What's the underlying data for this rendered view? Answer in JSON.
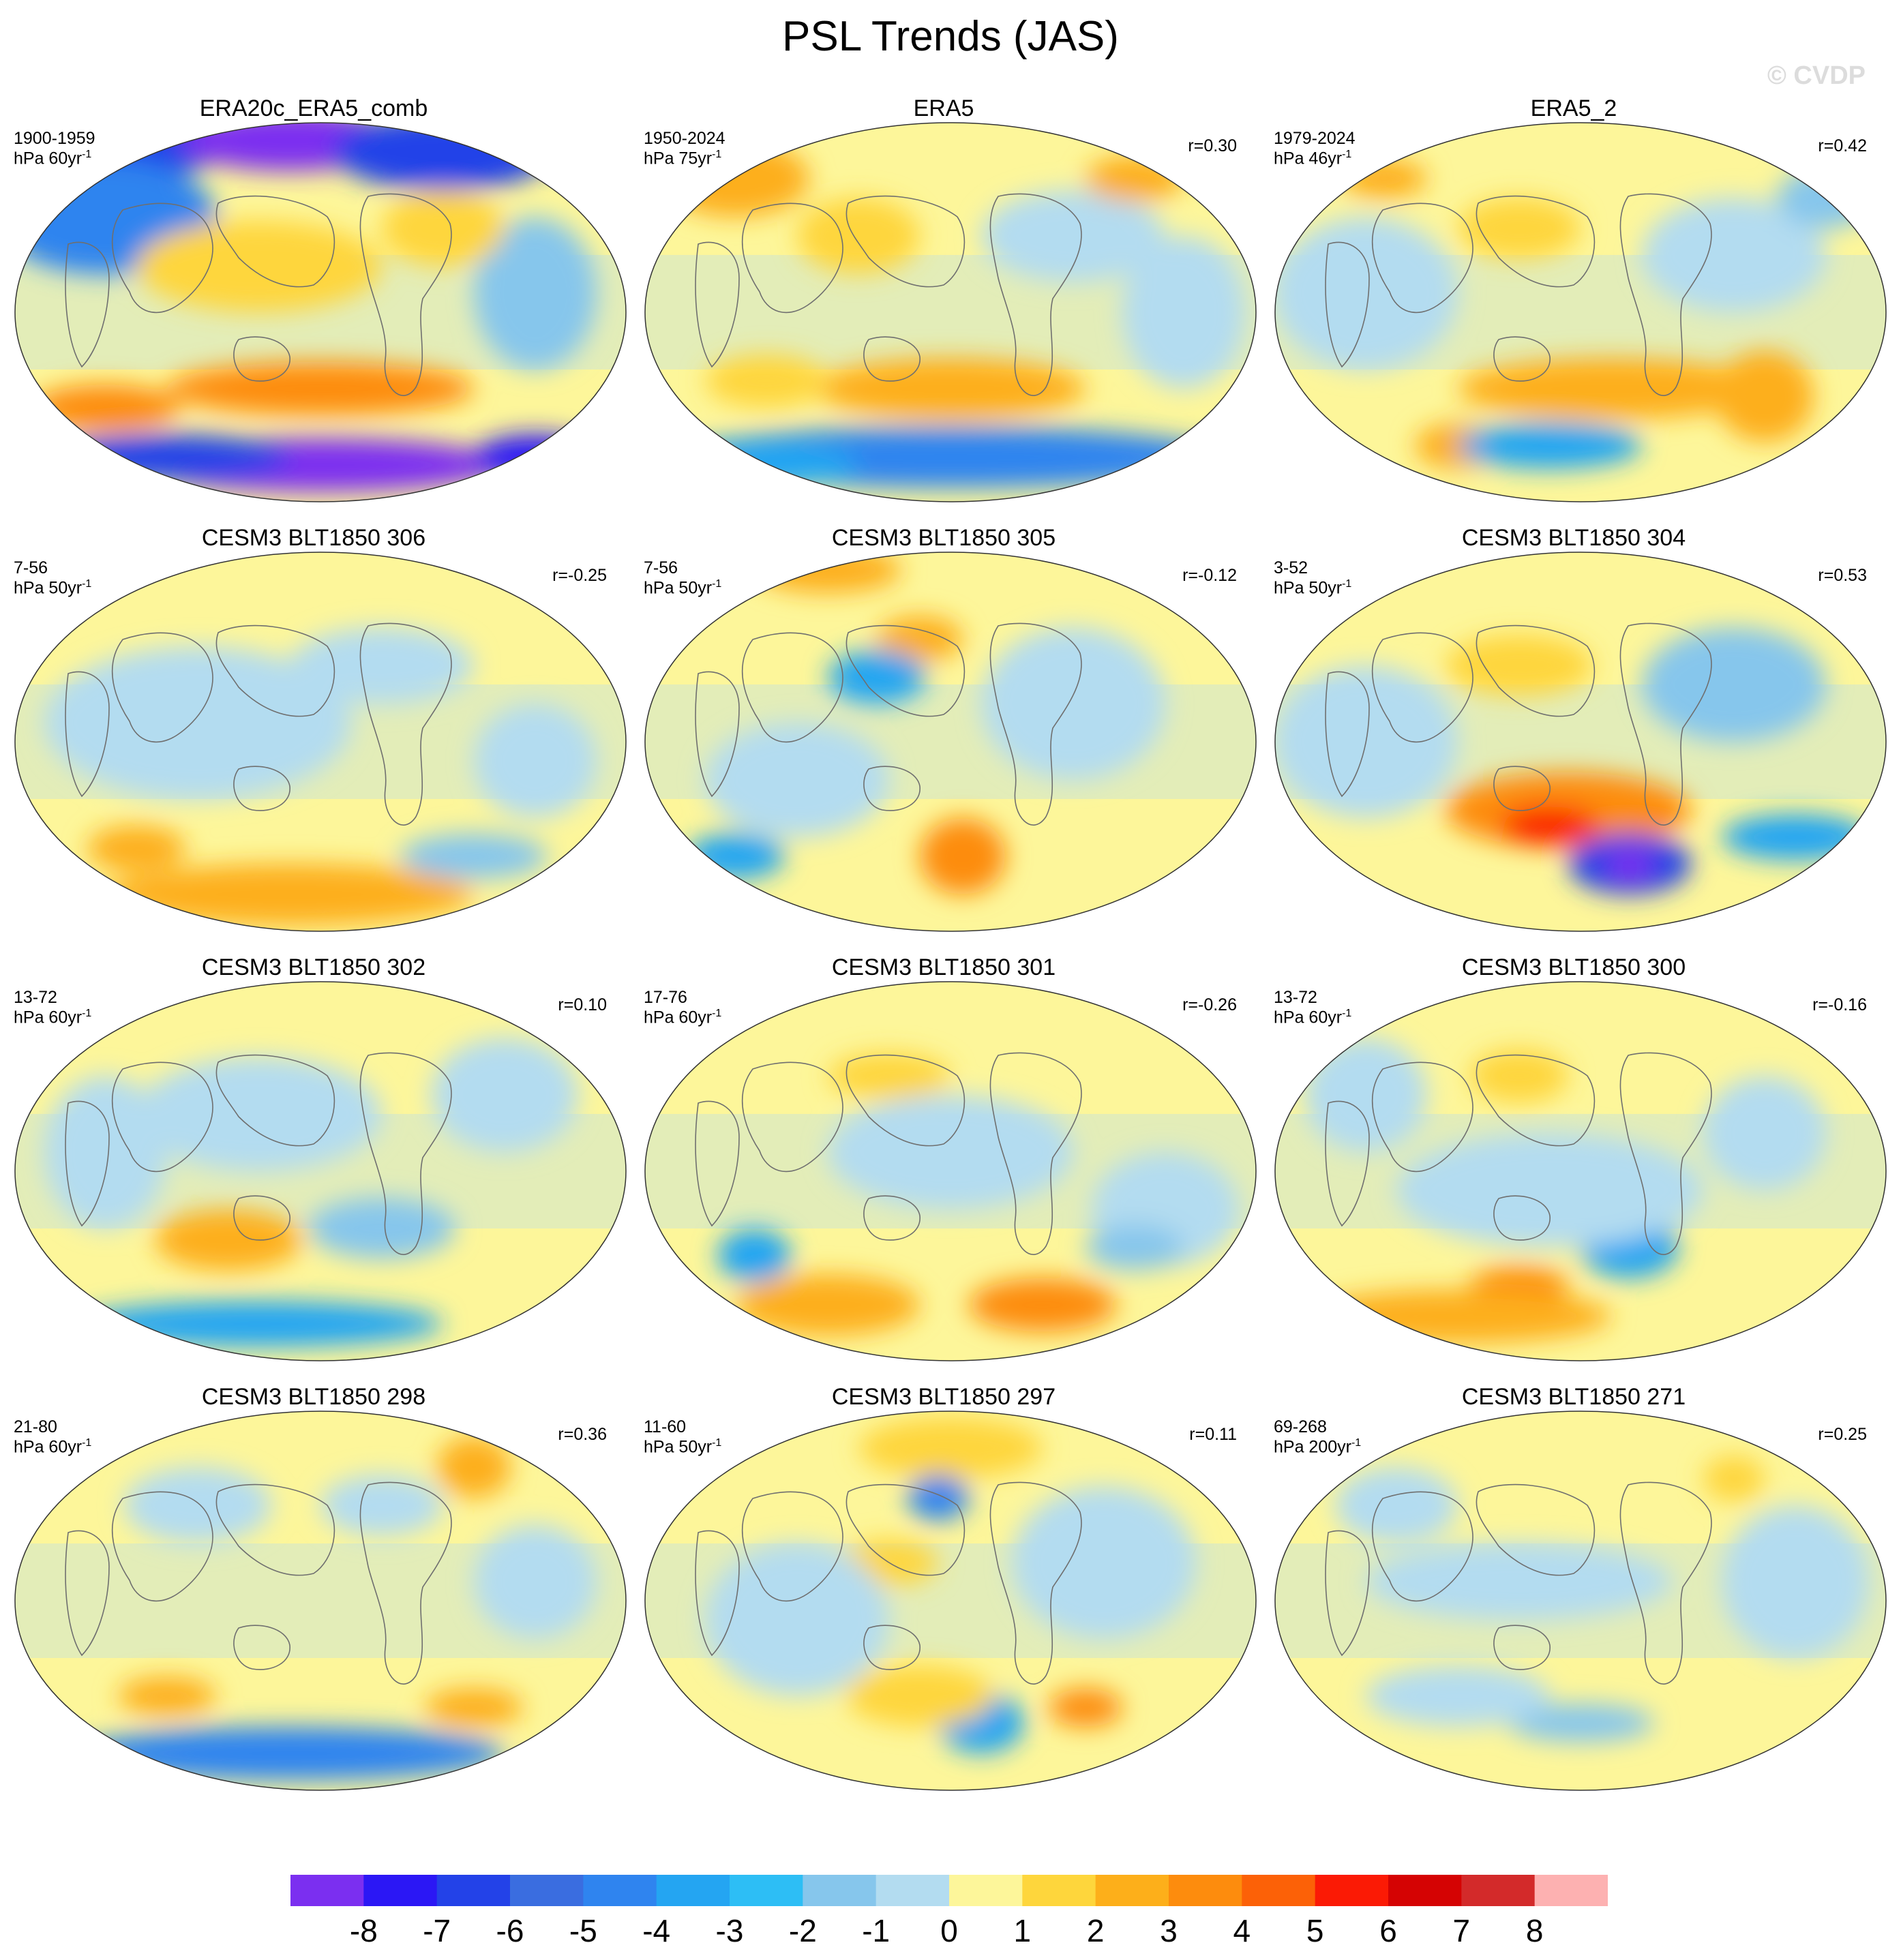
{
  "title": "PSL Trends (JAS)",
  "watermark": "© CVDP",
  "colors": {
    "levels": [
      "#7b2ff0",
      "#2b17f5",
      "#2342e8",
      "#3a6de0",
      "#2f84ef",
      "#24a5f2",
      "#2dbef5",
      "#86c6ec",
      "#b3dcf0",
      "#fdf69a",
      "#fed63c",
      "#fdaf1a",
      "#fd8c0d",
      "#fc6107",
      "#fb1a05",
      "#d50303",
      "#d32a2a",
      "#fdb1b1"
    ]
  },
  "colorbar_labels": [
    "-8",
    "-7",
    "-6",
    "-5",
    "-4",
    "-3",
    "-2",
    "-1",
    "0",
    "1",
    "2",
    "3",
    "4",
    "5",
    "6",
    "7",
    "8"
  ],
  "chart_data": [
    {
      "type": "heatmap",
      "title": "ERA20c_ERA5_comb",
      "years": "1900-1959",
      "units_prefix": "hPa 60yr",
      "units_sup": "-1",
      "corr": "",
      "blobs": [
        [
          0.2,
          0.05,
          0.15,
          0.1,
          "#2342e8"
        ],
        [
          0.45,
          0.05,
          0.18,
          0.08,
          "#7b2ff0"
        ],
        [
          0.7,
          0.08,
          0.18,
          0.1,
          "#2342e8"
        ],
        [
          0.15,
          0.25,
          0.18,
          0.15,
          "#2f84ef"
        ],
        [
          0.4,
          0.38,
          0.2,
          0.12,
          "#fed63c"
        ],
        [
          0.5,
          0.7,
          0.25,
          0.07,
          "#fd8c0d"
        ],
        [
          0.15,
          0.75,
          0.12,
          0.06,
          "#fd8c0d"
        ],
        [
          0.5,
          0.9,
          0.3,
          0.07,
          "#7b2ff0"
        ],
        [
          0.25,
          0.88,
          0.2,
          0.06,
          "#2342e8"
        ],
        [
          0.85,
          0.88,
          0.1,
          0.06,
          "#2b17f5"
        ],
        [
          0.85,
          0.45,
          0.1,
          0.2,
          "#86c6ec"
        ],
        [
          0.7,
          0.28,
          0.1,
          0.1,
          "#fed63c"
        ]
      ]
    },
    {
      "type": "heatmap",
      "title": "ERA5",
      "years": "1950-2024",
      "units_prefix": "hPa 75yr",
      "units_sup": "-1",
      "corr": "r=0.30",
      "blobs": [
        [
          0.15,
          0.15,
          0.12,
          0.1,
          "#fdaf1a"
        ],
        [
          0.35,
          0.3,
          0.1,
          0.1,
          "#fed63c"
        ],
        [
          0.5,
          0.7,
          0.22,
          0.08,
          "#fdaf1a"
        ],
        [
          0.2,
          0.68,
          0.1,
          0.07,
          "#fed63c"
        ],
        [
          0.5,
          0.88,
          0.45,
          0.08,
          "#2f84ef"
        ],
        [
          0.2,
          0.9,
          0.15,
          0.06,
          "#24a5f2"
        ],
        [
          0.7,
          0.3,
          0.15,
          0.12,
          "#b3dcf0"
        ],
        [
          0.88,
          0.5,
          0.1,
          0.2,
          "#b3dcf0"
        ],
        [
          0.8,
          0.15,
          0.08,
          0.06,
          "#fdaf1a"
        ]
      ]
    },
    {
      "type": "heatmap",
      "title": "ERA5_2",
      "years": "1979-2024",
      "units_prefix": "hPa 46yr",
      "units_sup": "-1",
      "corr": "r=0.42",
      "blobs": [
        [
          0.18,
          0.15,
          0.07,
          0.05,
          "#fdaf1a"
        ],
        [
          0.4,
          0.28,
          0.1,
          0.08,
          "#fed63c"
        ],
        [
          0.55,
          0.7,
          0.25,
          0.08,
          "#fdaf1a"
        ],
        [
          0.3,
          0.85,
          0.07,
          0.06,
          "#fdaf1a"
        ],
        [
          0.45,
          0.85,
          0.15,
          0.06,
          "#24a5f2"
        ],
        [
          0.8,
          0.72,
          0.08,
          0.12,
          "#fdaf1a"
        ],
        [
          0.15,
          0.45,
          0.15,
          0.2,
          "#b3dcf0"
        ],
        [
          0.75,
          0.35,
          0.15,
          0.15,
          "#b3dcf0"
        ],
        [
          0.9,
          0.2,
          0.08,
          0.08,
          "#86c6ec"
        ]
      ]
    },
    {
      "type": "heatmap",
      "title": "CESM3 BLT1850 306",
      "years": "7-56",
      "units_prefix": "hPa 50yr",
      "units_sup": "-1",
      "corr": "r=-0.25",
      "blobs": [
        [
          0.3,
          0.45,
          0.25,
          0.2,
          "#b3dcf0"
        ],
        [
          0.45,
          0.9,
          0.3,
          0.08,
          "#fdaf1a"
        ],
        [
          0.2,
          0.78,
          0.08,
          0.06,
          "#fdaf1a"
        ],
        [
          0.75,
          0.8,
          0.12,
          0.06,
          "#86c6ec"
        ],
        [
          0.6,
          0.3,
          0.15,
          0.1,
          "#b3dcf0"
        ],
        [
          0.85,
          0.55,
          0.1,
          0.15,
          "#b3dcf0"
        ]
      ]
    },
    {
      "type": "heatmap",
      "title": "CESM3 BLT1850 305",
      "years": "7-56",
      "units_prefix": "hPa 50yr",
      "units_sup": "-1",
      "corr": "r=-0.12",
      "blobs": [
        [
          0.3,
          0.05,
          0.12,
          0.06,
          "#fdaf1a"
        ],
        [
          0.45,
          0.23,
          0.07,
          0.06,
          "#fdaf1a"
        ],
        [
          0.38,
          0.33,
          0.08,
          0.07,
          "#24a5f2"
        ],
        [
          0.52,
          0.8,
          0.07,
          0.1,
          "#fd8c0d"
        ],
        [
          0.15,
          0.8,
          0.08,
          0.06,
          "#24a5f2"
        ],
        [
          0.7,
          0.4,
          0.15,
          0.2,
          "#b3dcf0"
        ],
        [
          0.25,
          0.6,
          0.15,
          0.15,
          "#b3dcf0"
        ]
      ]
    },
    {
      "type": "heatmap",
      "title": "CESM3 BLT1850 304",
      "years": "3-52",
      "units_prefix": "hPa 50yr",
      "units_sup": "-1",
      "corr": "r=0.53",
      "blobs": [
        [
          0.48,
          0.68,
          0.2,
          0.1,
          "#fd8c0d"
        ],
        [
          0.45,
          0.72,
          0.08,
          0.05,
          "#fb1a05"
        ],
        [
          0.58,
          0.82,
          0.1,
          0.08,
          "#2342e8"
        ],
        [
          0.58,
          0.82,
          0.04,
          0.04,
          "#7b2ff0"
        ],
        [
          0.4,
          0.3,
          0.12,
          0.08,
          "#fed63c"
        ],
        [
          0.75,
          0.35,
          0.15,
          0.15,
          "#86c6ec"
        ],
        [
          0.15,
          0.5,
          0.15,
          0.2,
          "#b3dcf0"
        ],
        [
          0.85,
          0.75,
          0.12,
          0.06,
          "#24a5f2"
        ]
      ]
    },
    {
      "type": "heatmap",
      "title": "CESM3 BLT1850 302",
      "years": "13-72",
      "units_prefix": "hPa 60yr",
      "units_sup": "-1",
      "corr": "r=0.10",
      "blobs": [
        [
          0.35,
          0.68,
          0.12,
          0.08,
          "#fdaf1a"
        ],
        [
          0.4,
          0.9,
          0.3,
          0.06,
          "#24a5f2"
        ],
        [
          0.6,
          0.65,
          0.12,
          0.08,
          "#86c6ec"
        ],
        [
          0.4,
          0.35,
          0.2,
          0.15,
          "#b3dcf0"
        ],
        [
          0.8,
          0.3,
          0.12,
          0.15,
          "#b3dcf0"
        ],
        [
          0.15,
          0.45,
          0.1,
          0.2,
          "#b3dcf0"
        ]
      ]
    },
    {
      "type": "heatmap",
      "title": "CESM3 BLT1850 301",
      "years": "17-76",
      "units_prefix": "hPa 60yr",
      "units_sup": "-1",
      "corr": "r=-0.26",
      "blobs": [
        [
          0.65,
          0.85,
          0.12,
          0.07,
          "#fd8c0d"
        ],
        [
          0.3,
          0.85,
          0.15,
          0.08,
          "#fdaf1a"
        ],
        [
          0.18,
          0.72,
          0.06,
          0.07,
          "#24a5f2"
        ],
        [
          0.4,
          0.25,
          0.1,
          0.06,
          "#fed63c"
        ],
        [
          0.5,
          0.45,
          0.2,
          0.15,
          "#b3dcf0"
        ],
        [
          0.85,
          0.6,
          0.12,
          0.15,
          "#b3dcf0"
        ],
        [
          0.8,
          0.7,
          0.08,
          0.06,
          "#86c6ec"
        ]
      ]
    },
    {
      "type": "heatmap",
      "title": "CESM3 BLT1850 300",
      "years": "13-72",
      "units_prefix": "hPa 60yr",
      "units_sup": "-1",
      "corr": "r=-0.16",
      "blobs": [
        [
          0.58,
          0.7,
          0.08,
          0.08,
          "#24a5f2"
        ],
        [
          0.4,
          0.8,
          0.08,
          0.05,
          "#fd8c0d"
        ],
        [
          0.3,
          0.88,
          0.25,
          0.07,
          "#fdaf1a"
        ],
        [
          0.45,
          0.55,
          0.25,
          0.15,
          "#b3dcf0"
        ],
        [
          0.4,
          0.25,
          0.08,
          0.07,
          "#fed63c"
        ],
        [
          0.8,
          0.4,
          0.1,
          0.15,
          "#b3dcf0"
        ],
        [
          0.15,
          0.3,
          0.1,
          0.15,
          "#b3dcf0"
        ]
      ]
    },
    {
      "type": "heatmap",
      "title": "CESM3 BLT1850 298",
      "years": "21-80",
      "units_prefix": "hPa 60yr",
      "units_sup": "-1",
      "corr": "r=0.36",
      "blobs": [
        [
          0.45,
          0.9,
          0.35,
          0.07,
          "#2f84ef"
        ],
        [
          0.25,
          0.75,
          0.08,
          0.05,
          "#fdaf1a"
        ],
        [
          0.75,
          0.78,
          0.08,
          0.05,
          "#fdaf1a"
        ],
        [
          0.75,
          0.15,
          0.06,
          0.08,
          "#fdaf1a"
        ],
        [
          0.3,
          0.25,
          0.12,
          0.1,
          "#b3dcf0"
        ],
        [
          0.6,
          0.25,
          0.1,
          0.08,
          "#b3dcf0"
        ],
        [
          0.85,
          0.45,
          0.1,
          0.15,
          "#b3dcf0"
        ]
      ]
    },
    {
      "type": "heatmap",
      "title": "CESM3 BLT1850 297",
      "years": "11-60",
      "units_prefix": "hPa 50yr",
      "units_sup": "-1",
      "corr": "r=0.11",
      "blobs": [
        [
          0.5,
          0.1,
          0.15,
          0.08,
          "#fed63c"
        ],
        [
          0.48,
          0.23,
          0.05,
          0.06,
          "#2f84ef"
        ],
        [
          0.4,
          0.4,
          0.08,
          0.06,
          "#fed63c"
        ],
        [
          0.55,
          0.82,
          0.07,
          0.08,
          "#24a5f2"
        ],
        [
          0.72,
          0.78,
          0.06,
          0.05,
          "#fd8c0d"
        ],
        [
          0.45,
          0.75,
          0.12,
          0.08,
          "#fed63c"
        ],
        [
          0.25,
          0.55,
          0.15,
          0.2,
          "#b3dcf0"
        ],
        [
          0.75,
          0.4,
          0.15,
          0.2,
          "#b3dcf0"
        ]
      ]
    },
    {
      "type": "heatmap",
      "title": "CESM3 BLT1850 271",
      "years": "69-268",
      "units_prefix": "hPa 200yr",
      "units_sup": "-1",
      "corr": "r=0.25",
      "blobs": [
        [
          0.5,
          0.82,
          0.12,
          0.05,
          "#86c6ec"
        ],
        [
          0.75,
          0.18,
          0.05,
          0.06,
          "#fed63c"
        ],
        [
          0.4,
          0.45,
          0.25,
          0.1,
          "#b3dcf0"
        ],
        [
          0.85,
          0.45,
          0.12,
          0.2,
          "#b3dcf0"
        ],
        [
          0.3,
          0.75,
          0.15,
          0.08,
          "#b3dcf0"
        ],
        [
          0.2,
          0.25,
          0.1,
          0.1,
          "#b3dcf0"
        ]
      ]
    }
  ]
}
